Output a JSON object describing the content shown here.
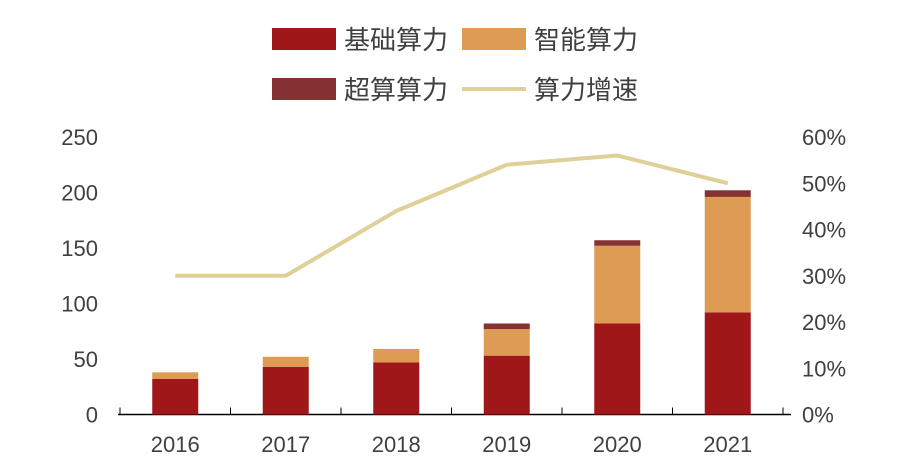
{
  "chart_data": {
    "type": "bar",
    "stacked": true,
    "categories": [
      "2016",
      "2017",
      "2018",
      "2019",
      "2020",
      "2021"
    ],
    "series": [
      {
        "name": "基础算力",
        "type": "bar",
        "axis": "left",
        "color": "#A0171A",
        "values": [
          32,
          43,
          47,
          53,
          82,
          92
        ]
      },
      {
        "name": "智能算力",
        "type": "bar",
        "axis": "left",
        "color": "#DD9B53",
        "values": [
          6,
          9,
          12,
          24,
          70,
          104
        ]
      },
      {
        "name": "超算算力",
        "type": "bar",
        "axis": "left",
        "color": "#863232",
        "values": [
          0,
          0,
          0,
          5,
          5,
          6
        ]
      },
      {
        "name": "算力增速",
        "type": "line",
        "axis": "right",
        "color": "#DED096",
        "values": [
          0.3,
          0.3,
          0.44,
          0.54,
          0.56,
          0.5
        ]
      }
    ],
    "y_left": {
      "range": [
        0,
        250
      ],
      "ticks": [
        "0",
        "50",
        "100",
        "150",
        "200",
        "250"
      ]
    },
    "y_right": {
      "range": [
        0,
        0.6
      ],
      "ticks": [
        "0%",
        "10%",
        "20%",
        "30%",
        "40%",
        "50%",
        "60%"
      ]
    },
    "legend_position": "top",
    "grid": false
  }
}
